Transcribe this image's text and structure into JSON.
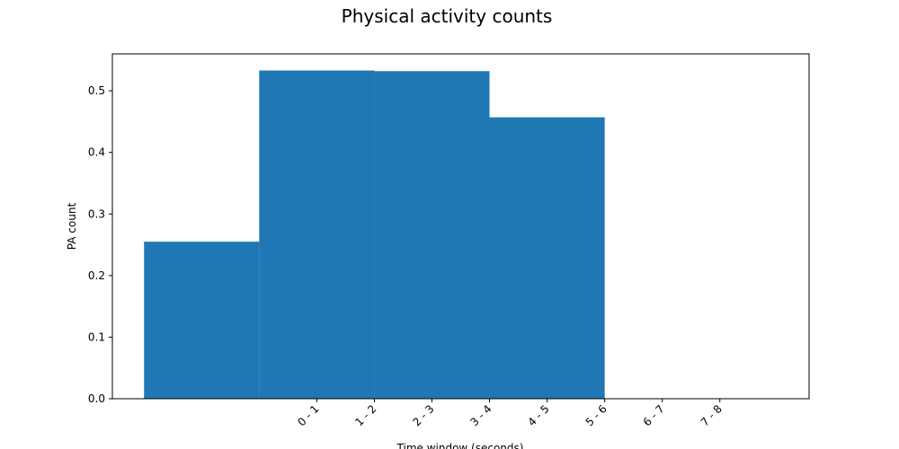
{
  "chart_data": {
    "type": "bar",
    "title": "Physical activity counts",
    "xlabel": "Time window (seconds)",
    "ylabel": "PA count",
    "ylim": [
      0,
      0.56
    ],
    "grid": false,
    "color": "#1f77b4",
    "bars": [
      {
        "x_start": -3.0,
        "x_end": -1.0,
        "value": 0.255
      },
      {
        "x_start": -1.0,
        "x_end": 1.0,
        "value": 0.533
      },
      {
        "x_start": 1.0,
        "x_end": 3.0,
        "value": 0.532
      },
      {
        "x_start": 3.0,
        "x_end": 5.0,
        "value": 0.457
      }
    ],
    "xlim": [
      -3.55,
      8.55
    ],
    "x_ticks": [
      {
        "pos": 0,
        "label": "0 - 1"
      },
      {
        "pos": 1,
        "label": "1 - 2"
      },
      {
        "pos": 2,
        "label": "2 - 3"
      },
      {
        "pos": 3,
        "label": "3 - 4"
      },
      {
        "pos": 4,
        "label": "4 - 5"
      },
      {
        "pos": 5,
        "label": "5 - 6"
      },
      {
        "pos": 6,
        "label": "6 - 7"
      },
      {
        "pos": 7,
        "label": "7 - 8"
      }
    ],
    "y_ticks": [
      {
        "value": 0.0,
        "label": "0.0"
      },
      {
        "value": 0.1,
        "label": "0.1"
      },
      {
        "value": 0.2,
        "label": "0.2"
      },
      {
        "value": 0.3,
        "label": "0.3"
      },
      {
        "value": 0.4,
        "label": "0.4"
      },
      {
        "value": 0.5,
        "label": "0.5"
      }
    ]
  }
}
